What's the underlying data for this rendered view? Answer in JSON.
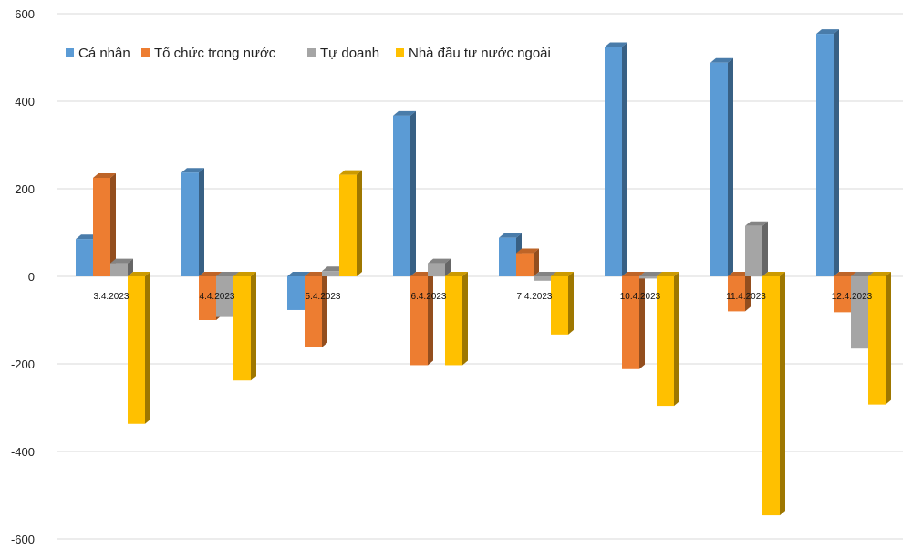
{
  "chart_data": {
    "type": "bar",
    "title": "",
    "xlabel": "",
    "ylabel": "",
    "ylim": [
      -600,
      600
    ],
    "yticks": [
      "600",
      "400",
      "200",
      "0",
      "-200",
      "-400",
      "-600"
    ],
    "grid": true,
    "legend_position": "top-left",
    "categories": [
      "3.4.2023",
      "4.4.2023",
      "5.4.2023",
      "6.4.2023",
      "7.4.2023",
      "10.4.2023",
      "11.4.2023",
      "12.4.2023"
    ],
    "series": [
      {
        "name": "Cá nhân",
        "color": "#5b9bd5",
        "values": [
          85,
          237,
          -77,
          367,
          88,
          524,
          488,
          554
        ]
      },
      {
        "name": "Tổ chức trong nước",
        "color": "#ed7d31",
        "values": [
          225,
          -100,
          -162,
          -203,
          53,
          -212,
          -80,
          -82
        ]
      },
      {
        "name": "Tự doanh",
        "color": "#a5a5a5",
        "values": [
          30,
          -93,
          12,
          30,
          -10,
          -5,
          115,
          -165
        ]
      },
      {
        "name": "Nhà đầu tư nước ngoài",
        "color": "#ffc000",
        "values": [
          -337,
          -238,
          232,
          -203,
          -133,
          -296,
          -546,
          -293
        ]
      }
    ]
  }
}
